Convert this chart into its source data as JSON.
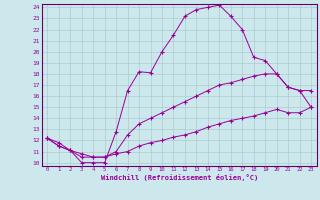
{
  "xlabel": "Windchill (Refroidissement éolien,°C)",
  "bg_color": "#cce8ec",
  "grid_color": "#aacccc",
  "line_color": "#990099",
  "xmin": 0,
  "xmax": 23,
  "ymin": 10,
  "ymax": 24,
  "series1_x": [
    0,
    1,
    2,
    3,
    4,
    5,
    6,
    7,
    8,
    9,
    10,
    11,
    12,
    13,
    14,
    15,
    16,
    17,
    18,
    19,
    20,
    21,
    22,
    23
  ],
  "series1_y": [
    12.2,
    11.8,
    11.1,
    10.0,
    10.0,
    10.0,
    12.8,
    16.5,
    18.2,
    18.1,
    20.0,
    21.5,
    23.2,
    23.8,
    24.0,
    24.2,
    23.2,
    22.0,
    19.5,
    19.2,
    18.0,
    16.8,
    16.5,
    16.5
  ],
  "series2_x": [
    0,
    1,
    2,
    3,
    4,
    5,
    6,
    7,
    8,
    9,
    10,
    11,
    12,
    13,
    14,
    15,
    16,
    17,
    18,
    19,
    20,
    21,
    22,
    23
  ],
  "series2_y": [
    12.2,
    11.5,
    11.1,
    10.8,
    10.5,
    10.5,
    11.0,
    12.5,
    13.5,
    14.0,
    14.5,
    15.0,
    15.5,
    16.0,
    16.5,
    17.0,
    17.2,
    17.5,
    17.8,
    18.0,
    18.0,
    16.8,
    16.5,
    15.0
  ],
  "series3_x": [
    0,
    1,
    2,
    3,
    4,
    5,
    6,
    7,
    8,
    9,
    10,
    11,
    12,
    13,
    14,
    15,
    16,
    17,
    18,
    19,
    20,
    21,
    22,
    23
  ],
  "series3_y": [
    12.2,
    11.5,
    11.1,
    10.5,
    10.5,
    10.5,
    10.8,
    11.0,
    11.5,
    11.8,
    12.0,
    12.3,
    12.5,
    12.8,
    13.2,
    13.5,
    13.8,
    14.0,
    14.2,
    14.5,
    14.8,
    14.5,
    14.5,
    15.0
  ]
}
